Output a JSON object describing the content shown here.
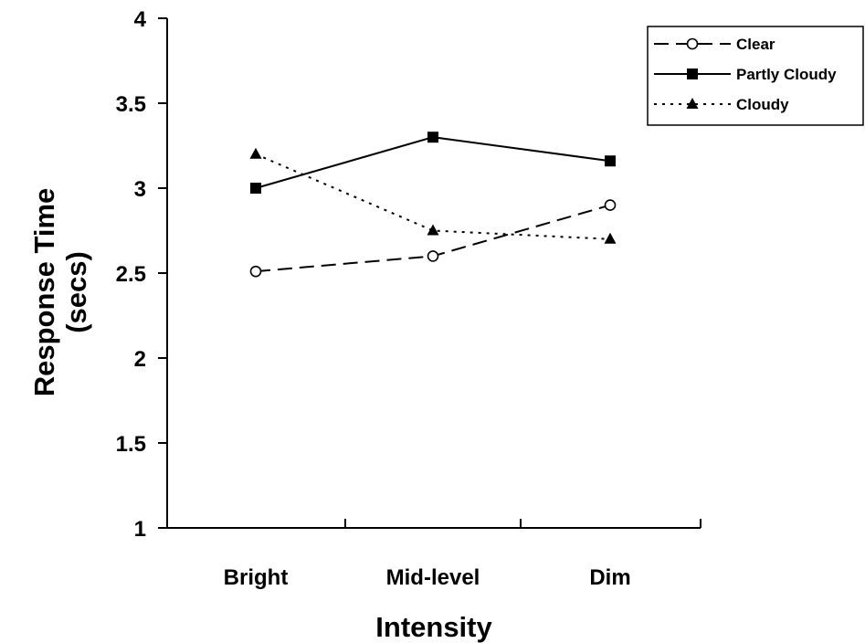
{
  "chart_data": {
    "type": "line",
    "categories": [
      "Bright",
      "Mid-level",
      "Dim"
    ],
    "series": [
      {
        "name": "Clear",
        "values": [
          2.51,
          2.6,
          2.9
        ],
        "style": "dashed",
        "marker": "open-circle",
        "color": "#000000"
      },
      {
        "name": "Partly Cloudy",
        "values": [
          3.0,
          3.3,
          3.16
        ],
        "style": "solid",
        "marker": "filled-square",
        "color": "#000000"
      },
      {
        "name": "Cloudy",
        "values": [
          3.2,
          2.75,
          2.7
        ],
        "style": "dotted",
        "marker": "filled-triangle",
        "color": "#000000"
      }
    ],
    "xlabel": "Intensity",
    "ylabel_lines": [
      "Response Time",
      "(secs)"
    ],
    "ylim": [
      1,
      4
    ],
    "yticks": [
      1,
      1.5,
      2,
      2.5,
      3,
      3.5,
      4
    ],
    "ytick_labels": [
      "1",
      "1.5",
      "2",
      "2.5",
      "3",
      "3.5",
      "4"
    ],
    "grid": false,
    "legend_position": "top-right"
  }
}
